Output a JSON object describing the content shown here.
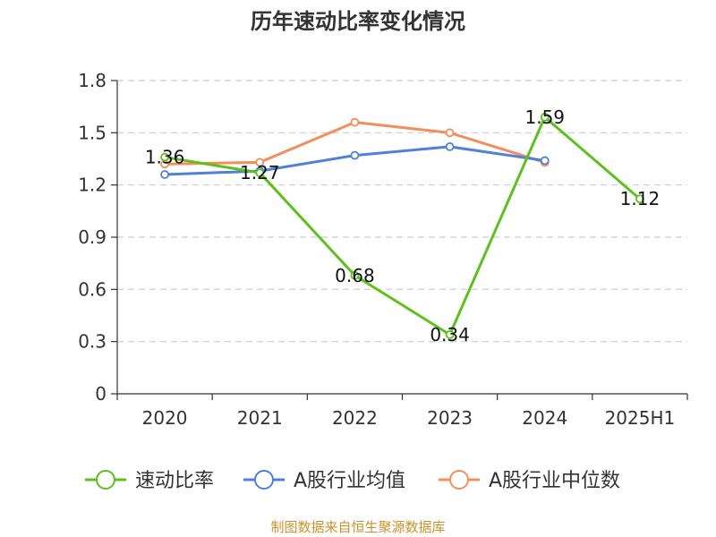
{
  "chart_data": {
    "type": "line",
    "title": "历年速动比率变化情况",
    "categories": [
      "2020",
      "2021",
      "2022",
      "2023",
      "2024",
      "2025H1"
    ],
    "series": [
      {
        "name": "速动比率",
        "color": "#5cc11c",
        "values": [
          1.36,
          1.27,
          0.68,
          0.34,
          1.59,
          1.12
        ],
        "labels": [
          "1.36",
          "1.27",
          "0.68",
          "0.34",
          "1.59",
          "1.12"
        ]
      },
      {
        "name": "A股行业均值",
        "color": "#4f81d9",
        "values": [
          1.26,
          1.28,
          1.37,
          1.42,
          1.34,
          null
        ]
      },
      {
        "name": "A股行业中位数",
        "color": "#f28e5c",
        "values": [
          1.32,
          1.33,
          1.56,
          1.5,
          1.33,
          null
        ]
      }
    ],
    "yticks": [
      "0",
      "0.3",
      "0.6",
      "0.9",
      "1.2",
      "1.5",
      "1.8"
    ],
    "ylim": [
      0,
      1.8
    ],
    "xlabel": "",
    "ylabel": "",
    "grid": true,
    "legend": "bottom"
  },
  "source": {
    "text": "制图数据来自恒生聚源数据库",
    "color": "#c8932a"
  }
}
